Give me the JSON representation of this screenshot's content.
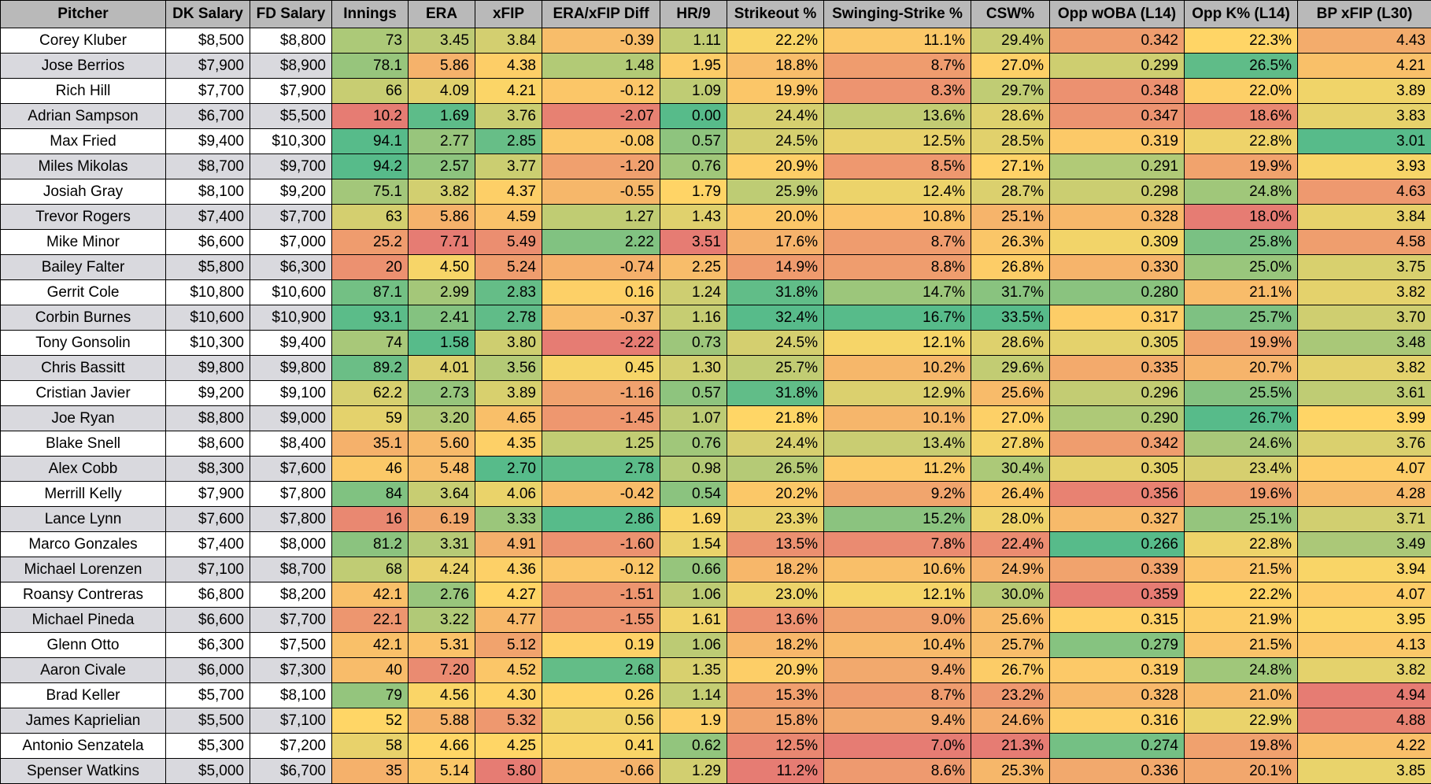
{
  "columns": [
    "Pitcher",
    "DK Salary",
    "FD Salary",
    "Innings",
    "ERA",
    "xFIP",
    "ERA/xFIP Diff",
    "HR/9",
    "Strikeout %",
    "Swinging-Strike %",
    "CSW%",
    "Opp wOBA (L14)",
    "Opp K% (L14)",
    "BP xFIP (L30)"
  ],
  "heat_colors": {
    "good": "#57bb8a",
    "mid": "#ffd666",
    "bad": "#e67c73"
  },
  "rows": [
    [
      "Corey Kluber",
      "$8,500",
      "$8,800",
      "73",
      "3.45",
      "3.84",
      "-0.39",
      "1.11",
      "22.2%",
      "11.1%",
      "29.4%",
      "0.342",
      "22.3%",
      "4.43"
    ],
    [
      "Jose Berrios",
      "$7,900",
      "$8,900",
      "78.1",
      "5.86",
      "4.38",
      "1.48",
      "1.95",
      "18.8%",
      "8.7%",
      "27.0%",
      "0.299",
      "26.5%",
      "4.21"
    ],
    [
      "Rich Hill",
      "$7,700",
      "$7,900",
      "66",
      "4.09",
      "4.21",
      "-0.12",
      "1.09",
      "19.9%",
      "8.3%",
      "29.7%",
      "0.348",
      "22.0%",
      "3.89"
    ],
    [
      "Adrian Sampson",
      "$6,700",
      "$5,500",
      "10.2",
      "1.69",
      "3.76",
      "-2.07",
      "0.00",
      "24.4%",
      "13.6%",
      "28.6%",
      "0.347",
      "18.6%",
      "3.83"
    ],
    [
      "Max Fried",
      "$9,400",
      "$10,300",
      "94.1",
      "2.77",
      "2.85",
      "-0.08",
      "0.57",
      "24.5%",
      "12.5%",
      "28.5%",
      "0.319",
      "22.8%",
      "3.01"
    ],
    [
      "Miles Mikolas",
      "$8,700",
      "$9,700",
      "94.2",
      "2.57",
      "3.77",
      "-1.20",
      "0.76",
      "20.9%",
      "8.5%",
      "27.1%",
      "0.291",
      "19.9%",
      "3.93"
    ],
    [
      "Josiah Gray",
      "$8,100",
      "$9,200",
      "75.1",
      "3.82",
      "4.37",
      "-0.55",
      "1.79",
      "25.9%",
      "12.4%",
      "28.7%",
      "0.298",
      "24.8%",
      "4.63"
    ],
    [
      "Trevor Rogers",
      "$7,400",
      "$7,700",
      "63",
      "5.86",
      "4.59",
      "1.27",
      "1.43",
      "20.0%",
      "10.8%",
      "25.1%",
      "0.328",
      "18.0%",
      "3.84"
    ],
    [
      "Mike Minor",
      "$6,600",
      "$7,000",
      "25.2",
      "7.71",
      "5.49",
      "2.22",
      "3.51",
      "17.6%",
      "8.7%",
      "26.3%",
      "0.309",
      "25.8%",
      "4.58"
    ],
    [
      "Bailey Falter",
      "$5,800",
      "$6,300",
      "20",
      "4.50",
      "5.24",
      "-0.74",
      "2.25",
      "14.9%",
      "8.8%",
      "26.8%",
      "0.330",
      "25.0%",
      "3.75"
    ],
    [
      "Gerrit Cole",
      "$10,800",
      "$10,600",
      "87.1",
      "2.99",
      "2.83",
      "0.16",
      "1.24",
      "31.8%",
      "14.7%",
      "31.7%",
      "0.280",
      "21.1%",
      "3.82"
    ],
    [
      "Corbin Burnes",
      "$10,600",
      "$10,900",
      "93.1",
      "2.41",
      "2.78",
      "-0.37",
      "1.16",
      "32.4%",
      "16.7%",
      "33.5%",
      "0.317",
      "25.7%",
      "3.70"
    ],
    [
      "Tony Gonsolin",
      "$10,300",
      "$9,400",
      "74",
      "1.58",
      "3.80",
      "-2.22",
      "0.73",
      "24.5%",
      "12.1%",
      "28.6%",
      "0.305",
      "19.9%",
      "3.48"
    ],
    [
      "Chris Bassitt",
      "$9,800",
      "$9,800",
      "89.2",
      "4.01",
      "3.56",
      "0.45",
      "1.30",
      "25.7%",
      "10.2%",
      "29.6%",
      "0.335",
      "20.7%",
      "3.82"
    ],
    [
      "Cristian Javier",
      "$9,200",
      "$9,100",
      "62.2",
      "2.73",
      "3.89",
      "-1.16",
      "0.57",
      "31.8%",
      "12.9%",
      "25.6%",
      "0.296",
      "25.5%",
      "3.61"
    ],
    [
      "Joe Ryan",
      "$8,800",
      "$9,000",
      "59",
      "3.20",
      "4.65",
      "-1.45",
      "1.07",
      "21.8%",
      "10.1%",
      "27.0%",
      "0.290",
      "26.7%",
      "3.99"
    ],
    [
      "Blake Snell",
      "$8,600",
      "$8,400",
      "35.1",
      "5.60",
      "4.35",
      "1.25",
      "0.76",
      "24.4%",
      "13.4%",
      "27.8%",
      "0.342",
      "24.6%",
      "3.76"
    ],
    [
      "Alex Cobb",
      "$8,300",
      "$7,600",
      "46",
      "5.48",
      "2.70",
      "2.78",
      "0.98",
      "26.5%",
      "11.2%",
      "30.4%",
      "0.305",
      "23.4%",
      "4.07"
    ],
    [
      "Merrill Kelly",
      "$7,900",
      "$7,800",
      "84",
      "3.64",
      "4.06",
      "-0.42",
      "0.54",
      "20.2%",
      "9.2%",
      "26.4%",
      "0.356",
      "19.6%",
      "4.28"
    ],
    [
      "Lance Lynn",
      "$7,600",
      "$7,800",
      "16",
      "6.19",
      "3.33",
      "2.86",
      "1.69",
      "23.3%",
      "15.2%",
      "28.0%",
      "0.327",
      "25.1%",
      "3.71"
    ],
    [
      "Marco Gonzales",
      "$7,400",
      "$8,000",
      "81.2",
      "3.31",
      "4.91",
      "-1.60",
      "1.54",
      "13.5%",
      "7.8%",
      "22.4%",
      "0.266",
      "22.8%",
      "3.49"
    ],
    [
      "Michael Lorenzen",
      "$7,100",
      "$8,700",
      "68",
      "4.24",
      "4.36",
      "-0.12",
      "0.66",
      "18.2%",
      "10.6%",
      "24.9%",
      "0.339",
      "21.5%",
      "3.94"
    ],
    [
      "Roansy Contreras",
      "$6,800",
      "$8,200",
      "42.1",
      "2.76",
      "4.27",
      "-1.51",
      "1.06",
      "23.0%",
      "12.1%",
      "30.0%",
      "0.359",
      "22.2%",
      "4.07"
    ],
    [
      "Michael Pineda",
      "$6,600",
      "$7,700",
      "22.1",
      "3.22",
      "4.77",
      "-1.55",
      "1.61",
      "13.6%",
      "9.0%",
      "25.6%",
      "0.315",
      "21.9%",
      "3.95"
    ],
    [
      "Glenn Otto",
      "$6,300",
      "$7,500",
      "42.1",
      "5.31",
      "5.12",
      "0.19",
      "1.06",
      "18.2%",
      "10.4%",
      "25.7%",
      "0.279",
      "21.5%",
      "4.13"
    ],
    [
      "Aaron Civale",
      "$6,000",
      "$7,300",
      "40",
      "7.20",
      "4.52",
      "2.68",
      "1.35",
      "20.9%",
      "9.4%",
      "26.7%",
      "0.319",
      "24.8%",
      "3.82"
    ],
    [
      "Brad Keller",
      "$5,700",
      "$8,100",
      "79",
      "4.56",
      "4.30",
      "0.26",
      "1.14",
      "15.3%",
      "8.7%",
      "23.2%",
      "0.328",
      "21.0%",
      "4.94"
    ],
    [
      "James Kaprielian",
      "$5,500",
      "$7,100",
      "52",
      "5.88",
      "5.32",
      "0.56",
      "1.9",
      "15.8%",
      "9.4%",
      "24.6%",
      "0.316",
      "22.9%",
      "4.88"
    ],
    [
      "Antonio Senzatela",
      "$5,300",
      "$7,200",
      "58",
      "4.66",
      "4.25",
      "0.41",
      "0.62",
      "12.5%",
      "7.0%",
      "21.3%",
      "0.274",
      "19.8%",
      "4.22"
    ],
    [
      "Spenser Watkins",
      "$5,000",
      "$6,700",
      "35",
      "5.14",
      "5.80",
      "-0.66",
      "1.29",
      "11.2%",
      "8.6%",
      "25.3%",
      "0.336",
      "20.1%",
      "3.85"
    ]
  ]
}
